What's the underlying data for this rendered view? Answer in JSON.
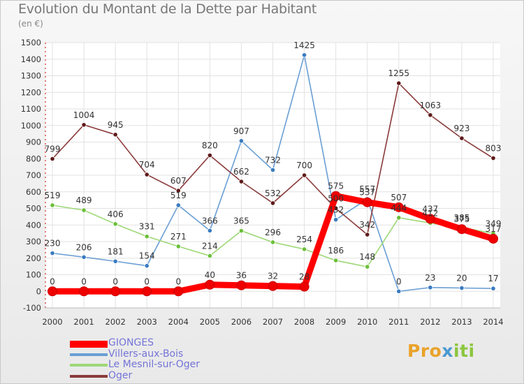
{
  "header": {
    "title": "Evolution du Montant de la Dette par Habitant",
    "unit": "(en €)"
  },
  "brand": {
    "p1": "Pro",
    "p2": "x",
    "p3": "iti"
  },
  "chart_data": {
    "type": "line",
    "title": "Evolution du Montant de la Dette par Habitant",
    "ylabel": "(en €)",
    "xlabel": "",
    "x": [
      2000,
      2001,
      2002,
      2003,
      2004,
      2005,
      2006,
      2007,
      2008,
      2009,
      2010,
      2011,
      2012,
      2013,
      2014
    ],
    "ylim": [
      -100,
      1500
    ],
    "yticks": [
      -100,
      0,
      100,
      200,
      300,
      400,
      500,
      600,
      700,
      800,
      900,
      1000,
      1100,
      1200,
      1300,
      1400,
      1500
    ],
    "grid": true,
    "legend": "bottom-left",
    "series": [
      {
        "name": "GIONGES",
        "color": "#ff0000",
        "marker": "#ee0000",
        "main": true,
        "values": [
          0,
          0,
          0,
          0,
          0,
          40,
          36,
          32,
          28,
          575,
          537,
          507,
          437,
          375,
          317
        ]
      },
      {
        "name": "Villers-aux-Bois",
        "color": "#6a9fd4",
        "marker": "#3a7bc0",
        "main": false,
        "values": [
          230,
          206,
          181,
          154,
          519,
          366,
          907,
          732,
          1425,
          432,
          557,
          0,
          23,
          20,
          17
        ]
      },
      {
        "name": "Le Mesnil-sur-Oger",
        "color": "#9ed877",
        "marker": "#6bbf3a",
        "main": false,
        "values": [
          519,
          489,
          406,
          331,
          271,
          214,
          365,
          296,
          254,
          186,
          148,
          444,
          412,
          385,
          349
        ]
      },
      {
        "name": "Oger",
        "color": "#8a3a3a",
        "marker": "#5e1a1a",
        "main": false,
        "values": [
          799,
          1004,
          945,
          704,
          607,
          820,
          662,
          532,
          700,
          500,
          342,
          1255,
          1063,
          923,
          803
        ]
      }
    ]
  }
}
